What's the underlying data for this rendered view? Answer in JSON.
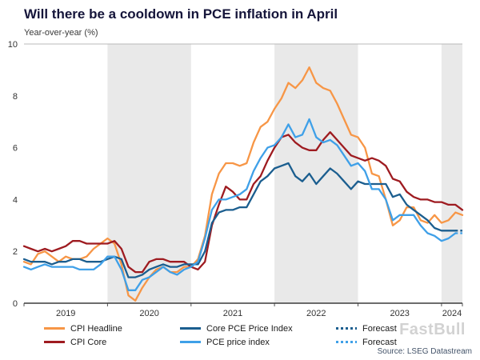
{
  "chart_data": {
    "type": "line",
    "title": "Will there be a cooldown in PCE inflation in April",
    "ylabel": "Year-over-year (%)",
    "ylim": [
      0,
      10
    ],
    "yticks": [
      0,
      2,
      4,
      6,
      8,
      10
    ],
    "x_start": "2019-01",
    "x_end": "2024-04",
    "xticks": [
      "2019",
      "2020",
      "2021",
      "2022",
      "2023",
      "2024"
    ],
    "shaded_years": [
      "2020",
      "2022",
      "2024"
    ],
    "band_color": "#e9e9e9",
    "series": [
      {
        "name": "CPI Headline",
        "color": "#f79646",
        "style": "solid",
        "values": [
          1.6,
          1.5,
          1.9,
          2.0,
          1.8,
          1.6,
          1.8,
          1.7,
          1.7,
          1.8,
          2.1,
          2.3,
          2.5,
          2.3,
          1.5,
          0.3,
          0.1,
          0.6,
          1.0,
          1.3,
          1.4,
          1.2,
          1.2,
          1.4,
          1.4,
          1.7,
          2.6,
          4.2,
          5.0,
          5.4,
          5.4,
          5.3,
          5.4,
          6.2,
          6.8,
          7.0,
          7.5,
          7.9,
          8.5,
          8.3,
          8.6,
          9.1,
          8.5,
          8.3,
          8.2,
          7.7,
          7.1,
          6.5,
          6.4,
          6.0,
          5.0,
          4.9,
          4.0,
          3.0,
          3.2,
          3.7,
          3.7,
          3.2,
          3.1,
          3.4,
          3.1,
          3.2,
          3.5,
          3.4
        ]
      },
      {
        "name": "CPI Core",
        "color": "#9e1b20",
        "style": "solid",
        "values": [
          2.2,
          2.1,
          2.0,
          2.1,
          2.0,
          2.1,
          2.2,
          2.4,
          2.4,
          2.3,
          2.3,
          2.3,
          2.3,
          2.4,
          2.1,
          1.4,
          1.2,
          1.2,
          1.6,
          1.7,
          1.7,
          1.6,
          1.6,
          1.6,
          1.4,
          1.3,
          1.6,
          3.0,
          3.8,
          4.5,
          4.3,
          4.0,
          4.0,
          4.6,
          4.9,
          5.5,
          6.0,
          6.4,
          6.5,
          6.2,
          6.0,
          5.9,
          5.9,
          6.3,
          6.6,
          6.3,
          6.0,
          5.7,
          5.6,
          5.5,
          5.6,
          5.5,
          5.3,
          4.8,
          4.7,
          4.3,
          4.1,
          4.0,
          4.0,
          3.9,
          3.9,
          3.8,
          3.8,
          3.6
        ]
      },
      {
        "name": "Core PCE Price Index",
        "color": "#1b5e8f",
        "style": "solid",
        "values": [
          1.7,
          1.6,
          1.6,
          1.6,
          1.5,
          1.6,
          1.6,
          1.7,
          1.7,
          1.6,
          1.6,
          1.6,
          1.7,
          1.8,
          1.7,
          1.0,
          1.0,
          1.1,
          1.3,
          1.4,
          1.5,
          1.4,
          1.4,
          1.5,
          1.5,
          1.5,
          2.0,
          3.1,
          3.5,
          3.6,
          3.6,
          3.7,
          3.7,
          4.2,
          4.7,
          4.9,
          5.2,
          5.3,
          5.4,
          4.9,
          4.7,
          5.0,
          4.6,
          4.9,
          5.2,
          5.0,
          4.7,
          4.4,
          4.7,
          4.6,
          4.6,
          4.6,
          4.6,
          4.1,
          4.2,
          3.8,
          3.6,
          3.4,
          3.2,
          2.9,
          2.8,
          2.8,
          2.8
        ],
        "forecast": [
          2.8
        ]
      },
      {
        "name": "PCE price index",
        "color": "#3fa0e8",
        "style": "solid",
        "values": [
          1.4,
          1.3,
          1.4,
          1.5,
          1.4,
          1.4,
          1.4,
          1.4,
          1.3,
          1.3,
          1.3,
          1.5,
          1.8,
          1.8,
          1.3,
          0.5,
          0.5,
          0.9,
          1.0,
          1.2,
          1.4,
          1.2,
          1.1,
          1.3,
          1.4,
          1.6,
          2.5,
          3.6,
          4.0,
          4.0,
          4.1,
          4.2,
          4.4,
          5.1,
          5.6,
          6.0,
          6.1,
          6.4,
          6.9,
          6.4,
          6.5,
          7.1,
          6.4,
          6.2,
          6.3,
          6.1,
          5.7,
          5.3,
          5.4,
          5.1,
          4.4,
          4.4,
          4.0,
          3.2,
          3.4,
          3.4,
          3.4,
          3.0,
          2.7,
          2.6,
          2.4,
          2.5,
          2.7
        ],
        "forecast": [
          2.7
        ]
      }
    ]
  },
  "legend": {
    "items": [
      {
        "label": "CPI Headline",
        "color": "#f79646",
        "dashed": false
      },
      {
        "label": "CPI Core",
        "color": "#9e1b20",
        "dashed": false
      },
      {
        "label": "Core PCE Price Index",
        "color": "#1b5e8f",
        "dashed": false
      },
      {
        "label": "PCE price index",
        "color": "#3fa0e8",
        "dashed": false
      },
      {
        "label": "Forecast",
        "color": "#1b5e8f",
        "dashed": true
      },
      {
        "label": "Forecast",
        "color": "#3fa0e8",
        "dashed": true
      }
    ]
  },
  "footer": {
    "source": "Source: LSEG Datastream"
  },
  "watermark": {
    "text": "FastBull"
  }
}
